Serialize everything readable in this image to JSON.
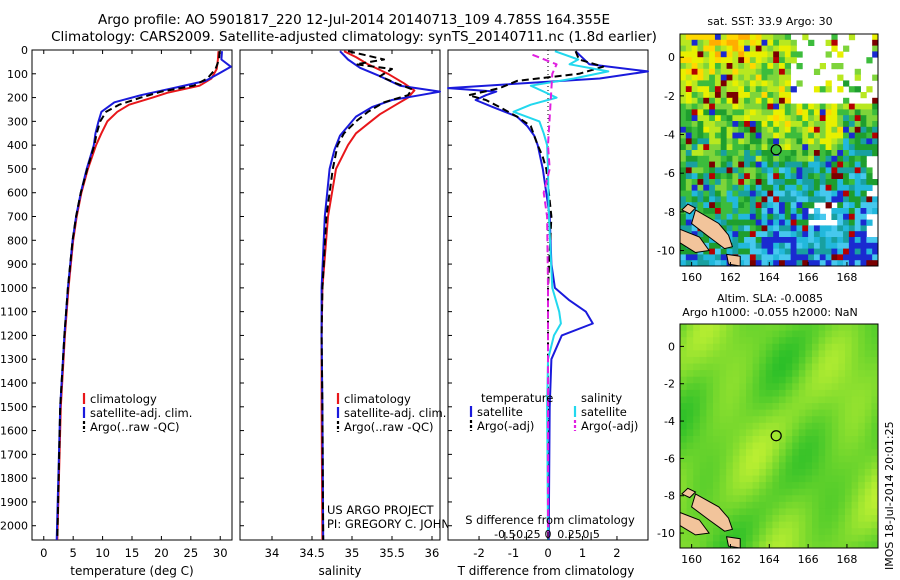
{
  "header": {
    "line1": "Argo profile: AO 5901817_220 12-Jul-2014 20140713_109 4.785S 164.355E",
    "line2": "Climatology: CARS2009. Satellite-adjusted climatology: synTS_20140711.nc (1.8d earlier)"
  },
  "colors": {
    "climatology": "#e8161a",
    "satellite": "#1a1adc",
    "argo": "#000000",
    "salinity_sat": "#22d8ee",
    "salinity_argo": "#e020e0",
    "coast": "#f2c49b"
  },
  "chart_data": [
    {
      "type": "line",
      "id": "temperature",
      "xlabel": "temperature (deg C)",
      "ylabel": "",
      "xlim": [
        -2,
        32
      ],
      "ylim": [
        2060,
        0
      ],
      "xticks": [
        0,
        5,
        10,
        15,
        20,
        25,
        30
      ],
      "yticks": [
        0,
        100,
        200,
        300,
        400,
        500,
        600,
        700,
        800,
        900,
        1000,
        1100,
        1200,
        1300,
        1400,
        1500,
        1600,
        1700,
        1800,
        1900,
        2000
      ],
      "legend": [
        "climatology",
        "satellite-adj. clim.",
        "Argo(..raw -QC)"
      ],
      "series": [
        {
          "name": "climatology",
          "color": "#e8161a",
          "dash": false,
          "depth": [
            5,
            40,
            80,
            120,
            150,
            180,
            200,
            230,
            260,
            300,
            350,
            400,
            500,
            600,
            700,
            800,
            1000,
            1200,
            1500,
            2060
          ],
          "values": [
            29.7,
            29.6,
            29.4,
            28.5,
            26.5,
            21,
            18.5,
            14.5,
            12.5,
            10.8,
            9.8,
            8.9,
            7.5,
            6.4,
            5.6,
            5,
            4.2,
            3.6,
            2.9,
            2.3
          ]
        },
        {
          "name": "satellite-adj. clim.",
          "color": "#1a1adc",
          "dash": false,
          "depth": [
            5,
            40,
            70,
            100,
            130,
            160,
            190,
            220,
            260,
            300,
            350,
            400,
            500,
            600,
            700,
            800,
            1000,
            1200,
            1500,
            2060
          ],
          "values": [
            30.3,
            30.2,
            31.8,
            29.7,
            27.5,
            22,
            16.5,
            12,
            9.8,
            9.3,
            8.8,
            8.5,
            7.3,
            6.3,
            5.5,
            4.9,
            4.1,
            3.5,
            2.8,
            2.2
          ]
        },
        {
          "name": "Argo(..raw -QC)",
          "color": "#000000",
          "dash": true,
          "depth": [
            5,
            40,
            80,
            120,
            150,
            175,
            200,
            230,
            260,
            300,
            350,
            400,
            500,
            600,
            700,
            800,
            1000,
            1200,
            1500,
            2060
          ],
          "values": [
            29.9,
            29.8,
            29.2,
            27.8,
            25.5,
            20,
            16.5,
            12.8,
            10.6,
            9.6,
            9,
            8.6,
            7.4,
            6.3,
            5.5,
            4.9,
            4.1,
            3.5,
            2.8,
            2.3
          ]
        }
      ]
    },
    {
      "type": "line",
      "id": "salinity",
      "xlabel": "salinity",
      "ylabel": "",
      "xlim": [
        33.6,
        36.1
      ],
      "ylim": [
        2060,
        0
      ],
      "xticks": [
        34,
        34.5,
        35,
        35.5,
        36
      ],
      "legend": [
        "climatology",
        "satellite-adj. clim.",
        "Argo(..raw -QC)"
      ],
      "annotation": [
        "US ARGO PROJECT",
        "PI: GREGORY C. JOHNSON"
      ],
      "series": [
        {
          "name": "climatology",
          "color": "#e8161a",
          "dash": false,
          "depth": [
            5,
            30,
            60,
            100,
            140,
            170,
            200,
            230,
            270,
            310,
            350,
            400,
            500,
            700,
            1000,
            1200,
            1500,
            2060
          ],
          "values": [
            34.9,
            35.05,
            35.2,
            35.45,
            35.65,
            35.78,
            35.7,
            35.55,
            35.35,
            35.2,
            35.05,
            34.95,
            34.8,
            34.7,
            34.63,
            34.62,
            34.62,
            34.63
          ]
        },
        {
          "name": "satellite-adj. clim.",
          "color": "#1a1adc",
          "dash": false,
          "depth": [
            5,
            40,
            75,
            110,
            150,
            175,
            190,
            210,
            240,
            280,
            320,
            360,
            420,
            500,
            700,
            1000,
            1200,
            1500,
            2060
          ],
          "values": [
            34.85,
            34.95,
            35.1,
            35.35,
            35.6,
            36.1,
            35.85,
            35.5,
            35.25,
            35.05,
            34.95,
            34.85,
            34.78,
            34.72,
            34.66,
            34.62,
            34.62,
            34.63,
            34.64
          ]
        },
        {
          "name": "Argo(..raw -QC)",
          "color": "#000000",
          "dash": true,
          "depth": [
            5,
            20,
            40,
            60,
            80,
            110,
            140,
            165,
            190,
            220,
            260,
            300,
            350,
            400,
            500,
            600,
            700,
            1000,
            1200,
            1500,
            2060
          ],
          "values": [
            34.95,
            35.15,
            35.4,
            35.05,
            35.5,
            35.35,
            35.55,
            35.75,
            35.7,
            35.4,
            35.2,
            35.05,
            34.9,
            34.82,
            34.76,
            34.72,
            34.68,
            34.63,
            34.62,
            34.63,
            34.64
          ]
        }
      ]
    },
    {
      "type": "line",
      "id": "difference",
      "xlabel": "T difference from climatology",
      "xlabel2": "S difference from climatology",
      "xlim": [
        -2.9,
        2.9
      ],
      "ylim": [
        2060,
        0
      ],
      "xticks": [
        -2,
        -1,
        0,
        1,
        2
      ],
      "xticks_s": [
        -0.5,
        -0.25,
        0,
        0.25,
        0.5
      ],
      "xticks_s_labels": [
        "-0.5",
        "-0.25",
        "0",
        "0.25",
        "0.5"
      ],
      "legend_t_title": "temperature",
      "legend_s_title": "salinity",
      "legend_t": [
        "satellite",
        "Argo(-adj)"
      ],
      "legend_s": [
        "satellite",
        "Argo(-adj)"
      ],
      "series": [
        {
          "name": "T satellite",
          "color": "#1a1adc",
          "dash": false,
          "depth": [
            5,
            60,
            90,
            120,
            160,
            175,
            190,
            210,
            240,
            280,
            320,
            360,
            400,
            500,
            700,
            900,
            1000,
            1050,
            1100,
            1150,
            1200,
            1300,
            1500,
            2060
          ],
          "values": [
            0.8,
            1.2,
            2.9,
            1.5,
            -2.9,
            -1.5,
            -1.8,
            -2.1,
            -1.6,
            -0.9,
            -0.6,
            -0.4,
            -0.3,
            -0.15,
            0.05,
            0.1,
            0.2,
            0.6,
            1.1,
            1.3,
            0.4,
            0.1,
            0.05,
            0.02
          ]
        },
        {
          "name": "T Argo(-adj)",
          "color": "#000000",
          "dash": true,
          "depth": [
            5,
            40,
            70,
            100,
            130,
            160,
            190,
            210,
            240,
            280,
            320,
            360,
            400,
            450,
            500,
            700,
            1000,
            1500,
            2060
          ],
          "values": [
            0.8,
            0.9,
            1.6,
            0.9,
            -0.9,
            -1.4,
            -2.3,
            -1.8,
            -1.4,
            -0.9,
            -0.5,
            -0.4,
            -0.3,
            -0.15,
            -0.05,
            0.1,
            0,
            0,
            0
          ]
        },
        {
          "name": "S satellite",
          "color": "#22d8ee",
          "dash": false,
          "depth": [
            5,
            40,
            60,
            90,
            120,
            150,
            175,
            200,
            230,
            260,
            300,
            350,
            400,
            500,
            700,
            1000,
            1100,
            1150,
            1200,
            1300,
            1500,
            2060
          ],
          "values": [
            0.08,
            0.35,
            0.25,
            0.7,
            0.3,
            -0.2,
            -0.05,
            0.1,
            -0.2,
            -0.4,
            -0.1,
            -0.05,
            -0.01,
            0.0,
            0.01,
            0.05,
            0.13,
            0.15,
            0.07,
            0.0,
            -0.01,
            0.0
          ]
        },
        {
          "name": "S Argo(-adj)",
          "color": "#e020e0",
          "dash": true,
          "depth": [
            20,
            60,
            100,
            400,
            500,
            600,
            700,
            1000,
            1500,
            2060
          ],
          "values": [
            -0.18,
            0.1,
            0.05,
            0.0,
            0.02,
            -0.05,
            -0.01,
            0.0,
            0.0,
            0.0
          ]
        }
      ]
    },
    {
      "type": "heatmap",
      "id": "sst_map",
      "title": "sat. SST: 33.9  Argo: 30",
      "xlim": [
        159.4,
        169.6
      ],
      "ylim": [
        -10.8,
        1.2
      ],
      "xticks": [
        160,
        162,
        164,
        166,
        168
      ],
      "yticks": [
        0,
        -2,
        -4,
        -6,
        -8,
        -10
      ],
      "marker": {
        "lon": 164.355,
        "lat": -4.785
      }
    },
    {
      "type": "heatmap",
      "id": "sla_map",
      "title": "Altim. SLA: -0.0085",
      "subtitle": "Argo h1000: -0.055  h2000: NaN",
      "xlim": [
        159.4,
        169.6
      ],
      "ylim": [
        -10.8,
        1.2
      ],
      "xticks": [
        160,
        162,
        164,
        166,
        168
      ],
      "yticks": [
        0,
        -2,
        -4,
        -6,
        -8,
        -10
      ],
      "marker": {
        "lon": 164.355,
        "lat": -4.785
      }
    }
  ],
  "footer": {
    "timestamp": "IMOS 18-Jul-2014 20:01:25"
  }
}
